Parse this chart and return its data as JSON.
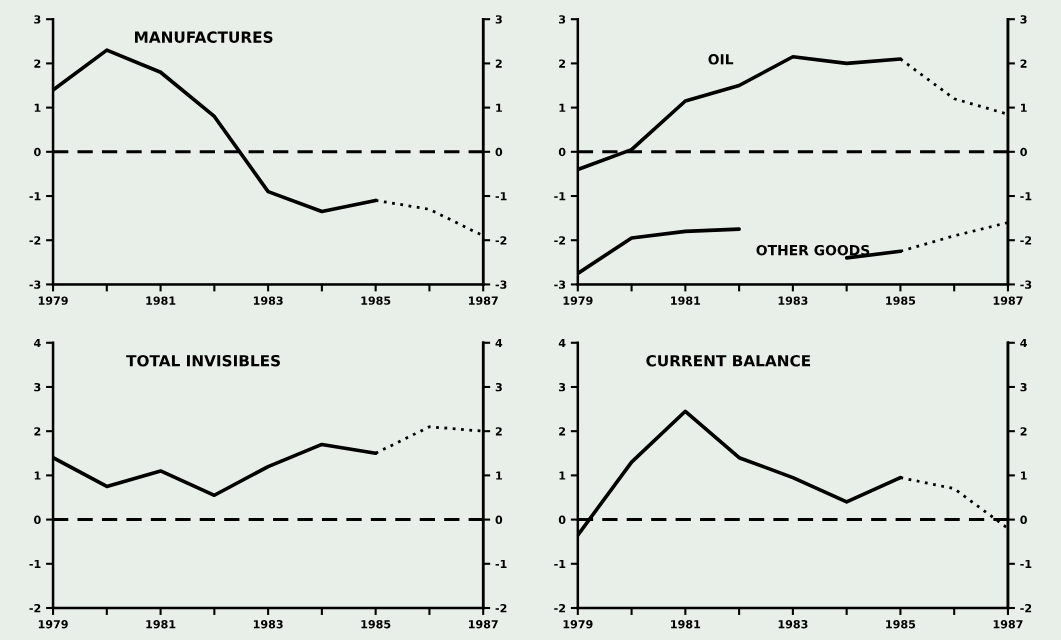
{
  "chart_data": [
    {
      "type": "line",
      "title": "MANUFACTURES",
      "ylim": [
        -3,
        3
      ],
      "yticks": [
        -3,
        -2,
        -1,
        0,
        1,
        2,
        3
      ],
      "y2lim": [
        -3,
        3
      ],
      "y2ticks": [
        -3,
        -2,
        -1,
        0,
        1,
        2,
        3
      ],
      "xlim": [
        1979,
        1987
      ],
      "xticks": [
        1979,
        {
          "value": 1980,
          "label": null
        },
        1981,
        {
          "value": 1982,
          "label": null
        },
        1983,
        {
          "value": 1984,
          "label": null
        },
        1985,
        {
          "value": 1986,
          "label": null
        },
        1987
      ],
      "ref_lines": [
        {
          "axis": "y",
          "value": 0,
          "line_style": "dashed",
          "color": "#000000"
        }
      ],
      "series": [
        {
          "color": "#000000",
          "line_style": "solid",
          "x": [
            1979,
            1980,
            1981,
            1982,
            1983,
            1984,
            1985
          ],
          "values": [
            1.4,
            2.3,
            1.8,
            0.8,
            -0.9,
            -1.35,
            -1.1
          ]
        },
        {
          "color": "#000000",
          "line_style": "dotted",
          "x": [
            1985,
            1986,
            1987
          ],
          "values": [
            -1.1,
            -1.3,
            -1.9
          ]
        }
      ]
    },
    {
      "type": "line",
      "ylim": [
        -3,
        3
      ],
      "yticks": [
        -3,
        -2,
        -1,
        0,
        1,
        2,
        3
      ],
      "y2lim": [
        -3,
        3
      ],
      "y2ticks": [
        -3,
        -2,
        -1,
        0,
        1,
        2,
        3
      ],
      "xlim": [
        1979,
        1987
      ],
      "xticks": [
        1979,
        {
          "value": 1980,
          "label": null
        },
        1981,
        {
          "value": 1982,
          "label": null
        },
        1983,
        {
          "value": 1984,
          "label": null
        },
        1985,
        {
          "value": 1986,
          "label": null
        },
        1987
      ],
      "ref_lines": [
        {
          "axis": "y",
          "value": 0,
          "line_style": "dashed",
          "color": "#000000"
        }
      ],
      "series": [
        {
          "name": "OIL",
          "color": "#000000",
          "line_style": "solid",
          "x": [
            1979,
            1980,
            1981,
            1982,
            1983,
            1984,
            1985
          ],
          "values": [
            -0.4,
            0.05,
            1.15,
            1.5,
            2.15,
            2.0,
            2.1
          ]
        },
        {
          "color": "#000000",
          "line_style": "dotted",
          "x": [
            1985,
            1986,
            1987
          ],
          "values": [
            2.1,
            1.2,
            0.85
          ]
        },
        {
          "name": "OTHER GOODS",
          "color": "#000000",
          "line_style": "solid",
          "x": [
            1979,
            1980,
            1981,
            1982,
            1983,
            1984,
            1985
          ],
          "values": [
            -2.75,
            -1.95,
            -1.8,
            -1.75,
            null,
            -2.4,
            -2.25
          ]
        },
        {
          "color": "#000000",
          "line_style": "dotted",
          "x": [
            1985,
            1986,
            1987
          ],
          "values": [
            -2.25,
            -1.9,
            -1.6
          ]
        }
      ]
    },
    {
      "type": "line",
      "title": "TOTAL INVISIBLES",
      "ylim": [
        -2,
        4
      ],
      "yticks": [
        -2,
        -1,
        0,
        1,
        2,
        3,
        4
      ],
      "y2lim": [
        -2,
        4
      ],
      "y2ticks": [
        -2,
        -1,
        0,
        1,
        2,
        3,
        4
      ],
      "xlim": [
        1979,
        1987
      ],
      "xticks": [
        1979,
        {
          "value": 1980,
          "label": null
        },
        1981,
        {
          "value": 1982,
          "label": null
        },
        1983,
        {
          "value": 1984,
          "label": null
        },
        1985,
        {
          "value": 1986,
          "label": null
        },
        1987
      ],
      "ref_lines": [
        {
          "axis": "y",
          "value": 0,
          "line_style": "dashed",
          "color": "#000000"
        }
      ],
      "series": [
        {
          "color": "#000000",
          "line_style": "solid",
          "x": [
            1979,
            1980,
            1981,
            1982,
            1983,
            1984,
            1985
          ],
          "values": [
            1.4,
            0.75,
            1.1,
            0.55,
            1.2,
            1.7,
            1.5
          ]
        },
        {
          "color": "#000000",
          "line_style": "dotted",
          "x": [
            1985,
            1986,
            1987
          ],
          "values": [
            1.5,
            2.1,
            2.0
          ]
        }
      ]
    },
    {
      "type": "line",
      "title": "CURRENT BALANCE",
      "ylim": [
        -2,
        4
      ],
      "yticks": [
        -2,
        -1,
        0,
        1,
        2,
        3,
        4
      ],
      "y2lim": [
        -2,
        4
      ],
      "y2ticks": [
        -2,
        -1,
        0,
        1,
        2,
        3,
        4
      ],
      "xlim": [
        1979,
        1987
      ],
      "xticks": [
        1979,
        {
          "value": 1980,
          "label": null
        },
        1981,
        {
          "value": 1982,
          "label": null
        },
        1983,
        {
          "value": 1984,
          "label": null
        },
        1985,
        {
          "value": 1986,
          "label": null
        },
        1987
      ],
      "ref_lines": [
        {
          "axis": "y",
          "value": 0,
          "line_style": "dashed",
          "color": "#000000"
        }
      ],
      "series": [
        {
          "color": "#000000",
          "line_style": "solid",
          "x": [
            1979,
            1980,
            1981,
            1982,
            1983,
            1984,
            1985
          ],
          "values": [
            -0.35,
            1.3,
            2.45,
            1.4,
            0.95,
            0.4,
            0.95
          ]
        },
        {
          "color": "#000000",
          "line_style": "dotted",
          "x": [
            1985,
            1986,
            1987
          ],
          "values": [
            0.95,
            0.7,
            -0.2
          ]
        }
      ]
    }
  ]
}
